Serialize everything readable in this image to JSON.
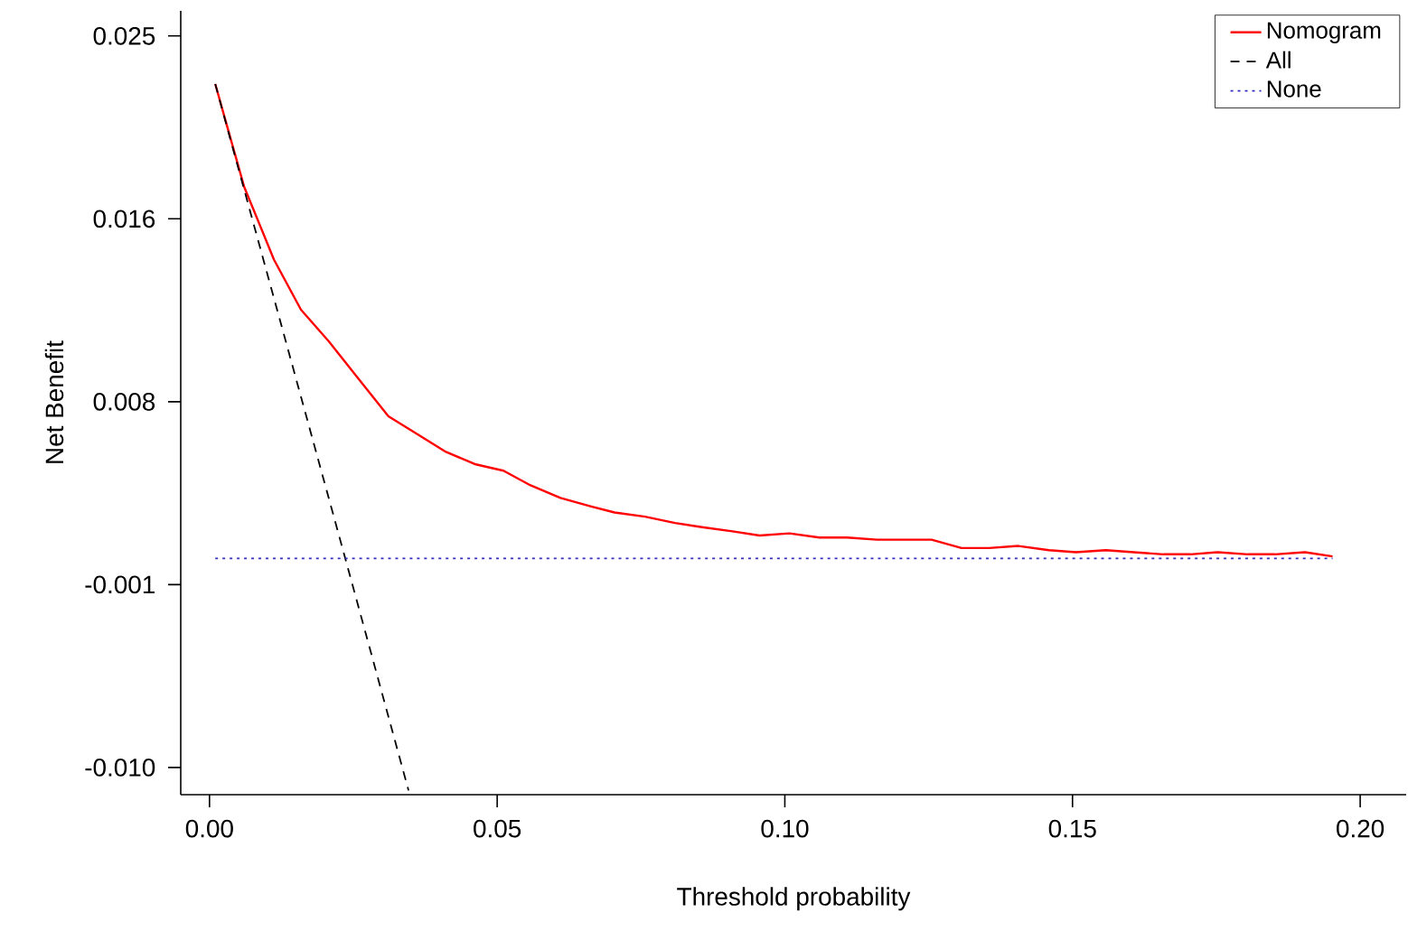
{
  "chart_data": {
    "type": "line",
    "xlabel": "Threshold probability",
    "ylabel": "Net Benefit",
    "xlim": [
      -0.005,
      0.208
    ],
    "ylim": [
      -0.0113,
      0.0262
    ],
    "xticks": [
      {
        "value": 0,
        "label": "0.00"
      },
      {
        "value": 0.05,
        "label": "0.05"
      },
      {
        "value": 0.1,
        "label": "0.10"
      },
      {
        "value": 0.15,
        "label": "0.15"
      },
      {
        "value": 0.2,
        "label": "0.20"
      }
    ],
    "yticks": [
      {
        "value": -0.01,
        "label": "-0.010"
      },
      {
        "value": -0.00125,
        "label": "-0.001"
      },
      {
        "value": 0.0075,
        "label": "0.008"
      },
      {
        "value": 0.01625,
        "label": "0.016"
      },
      {
        "value": 0.025,
        "label": "0.025"
      }
    ],
    "legend": "top right",
    "grid": false,
    "marker": "none",
    "series": [
      {
        "name": "Nomogram",
        "color": "#ff0000",
        "line_style": "solid",
        "x": [
          0.001,
          0.006,
          0.0112,
          0.0159,
          0.0207,
          0.0259,
          0.0311,
          0.0358,
          0.0411,
          0.0463,
          0.0511,
          0.0558,
          0.061,
          0.0662,
          0.0704,
          0.0757,
          0.0809,
          0.0856,
          0.0909,
          0.0956,
          0.1008,
          0.106,
          0.1108,
          0.116,
          0.1208,
          0.1255,
          0.1307,
          0.1355,
          0.1406,
          0.1459,
          0.1506,
          0.1558,
          0.1606,
          0.1658,
          0.1705,
          0.1752,
          0.1805,
          0.1852,
          0.1904,
          0.1952
        ],
        "values": [
          0.0227,
          0.0178,
          0.0143,
          0.0119,
          0.0104,
          0.0086,
          0.0068,
          0.006,
          0.0051,
          0.0045,
          0.0042,
          0.0035,
          0.0029,
          0.0025,
          0.0022,
          0.002,
          0.0017,
          0.0015,
          0.0013,
          0.0011,
          0.0012,
          0.001,
          0.001,
          0.0009,
          0.0009,
          0.0009,
          0.0005,
          0.0005,
          0.0006,
          0.0004,
          0.0003,
          0.0004,
          0.0003,
          0.0002,
          0.0002,
          0.0003,
          0.0002,
          0.0002,
          0.0003,
          0.0001
        ]
      },
      {
        "name": "All",
        "color": "#000000",
        "line_style": "dashed",
        "x": [
          0.001,
          0.0236,
          0.0346
        ],
        "values": [
          0.0227,
          0.0,
          -0.0111
        ]
      },
      {
        "name": "None",
        "color": "#3030c0",
        "line_style": "dotted",
        "x": [
          0.001,
          0.1952
        ],
        "values": [
          0.0,
          0.0
        ]
      }
    ]
  }
}
